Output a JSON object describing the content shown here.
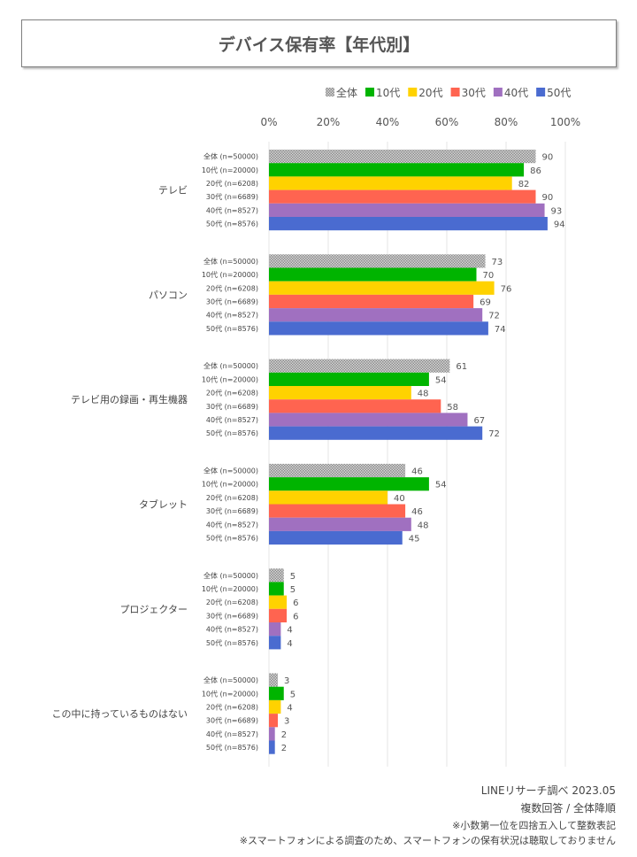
{
  "chart_data": {
    "type": "bar",
    "orientation": "horizontal",
    "title": "デバイス保有率【年代別】",
    "xlim": [
      0,
      100
    ],
    "x_ticks": [
      "0%",
      "20%",
      "40%",
      "60%",
      "80%",
      "100%"
    ],
    "grid": true,
    "legend_position": "top-right",
    "categories": [
      "テレビ",
      "パソコン",
      "テレビ用の録画・再生機器",
      "タブレット",
      "プロジェクター",
      "この中に持っているものはない"
    ],
    "row_labels": [
      "全体 (n=50000)",
      "10代 (n=20000)",
      "20代 (n=6208)",
      "30代 (n=6689)",
      "40代 (n=8527)",
      "50代 (n=8576)"
    ],
    "series": [
      {
        "name": "全体",
        "color": "#b0b0b0",
        "pattern": "hatched",
        "values": [
          90,
          73,
          61,
          46,
          5,
          3
        ]
      },
      {
        "name": "10代",
        "color": "#00b400",
        "values": [
          86,
          70,
          54,
          54,
          5,
          5
        ]
      },
      {
        "name": "20代",
        "color": "#ffd200",
        "values": [
          82,
          76,
          48,
          40,
          6,
          4
        ]
      },
      {
        "name": "30代",
        "color": "#ff6450",
        "values": [
          90,
          69,
          58,
          46,
          6,
          3
        ]
      },
      {
        "name": "40代",
        "color": "#a070c0",
        "values": [
          93,
          72,
          67,
          48,
          4,
          2
        ]
      },
      {
        "name": "50代",
        "color": "#4a6bd0",
        "values": [
          94,
          74,
          72,
          45,
          4,
          2
        ]
      }
    ]
  },
  "notes": [
    "LINEリサーチ調べ 2023.05",
    "複数回答 / 全体降順",
    "※小数第一位を四捨五入して整数表記",
    "※スマートフォンによる調査のため、スマートフォンの保有状況は聴取しておりません"
  ]
}
